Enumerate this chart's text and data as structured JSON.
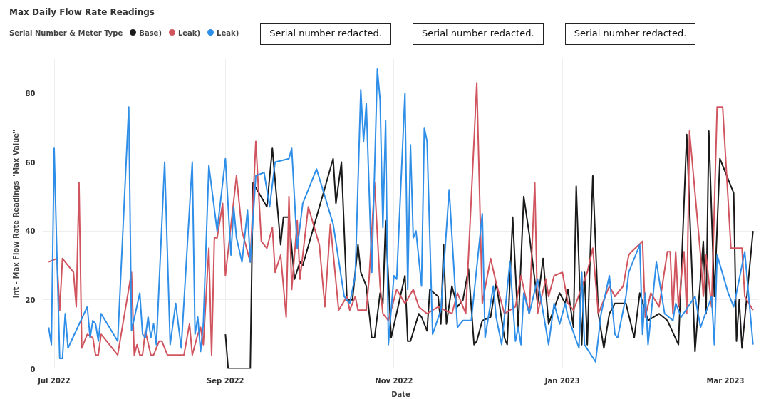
{
  "chart_data": {
    "type": "line",
    "title": "Max Daily Flow Rate Readings",
    "legend_title": "Serial Number & Meter Type",
    "xlabel": "Date",
    "ylabel": "Int - Max Flow Rate Readings \"Max Value\"",
    "xlim": [
      "2022-06-27",
      "2023-03-13"
    ],
    "xticks": [
      {
        "value": "2022-07-01",
        "label": "Jul 2022"
      },
      {
        "value": "2022-09-01",
        "label": "Sep 2022"
      },
      {
        "value": "2022-11-01",
        "label": "Nov 2022"
      },
      {
        "value": "2023-01-01",
        "label": "Jan 2023"
      },
      {
        "value": "2023-03-01",
        "label": "Mar 2023"
      }
    ],
    "ylim": [
      0,
      90
    ],
    "yticks": [
      0,
      20,
      40,
      60,
      80
    ],
    "grid": true,
    "legend": "top left",
    "line_style": "solid",
    "annotations": [
      "Serial number redacted.",
      "Serial number redacted.",
      "Serial number redacted."
    ],
    "series": [
      {
        "name": "Base)",
        "color": "#1a1a1a",
        "x": [
          "2022-09-01",
          "2022-09-02",
          "2022-09-10",
          "2022-09-11",
          "2022-09-16",
          "2022-09-18",
          "2022-09-21",
          "2022-09-22",
          "2022-09-24",
          "2022-09-26",
          "2022-09-28",
          "2022-09-29",
          "2022-10-10",
          "2022-10-11",
          "2022-10-13",
          "2022-10-15",
          "2022-10-17",
          "2022-10-19",
          "2022-10-20",
          "2022-10-22",
          "2022-10-24",
          "2022-10-25",
          "2022-10-27",
          "2022-10-28",
          "2022-10-29",
          "2022-10-31",
          "2022-11-05",
          "2022-11-06",
          "2022-11-07",
          "2022-11-10",
          "2022-11-11",
          "2022-11-13",
          "2022-11-14",
          "2022-11-17",
          "2022-11-18",
          "2022-11-19",
          "2022-11-20",
          "2022-11-22",
          "2022-11-24",
          "2022-11-26",
          "2022-11-28",
          "2022-11-30",
          "2022-12-01",
          "2022-12-03",
          "2022-12-06",
          "2022-12-08",
          "2022-12-11",
          "2022-12-12",
          "2022-12-14",
          "2022-12-16",
          "2022-12-18",
          "2022-12-20",
          "2022-12-23",
          "2022-12-25",
          "2022-12-27",
          "2022-12-31",
          "2023-01-02",
          "2023-01-03",
          "2023-01-05",
          "2023-01-06",
          "2023-01-08",
          "2023-01-09",
          "2023-01-10",
          "2023-01-12",
          "2023-01-14",
          "2023-01-16",
          "2023-01-18",
          "2023-01-20",
          "2023-01-24",
          "2023-01-27",
          "2023-01-29",
          "2023-02-01",
          "2023-02-05",
          "2023-02-08",
          "2023-02-12",
          "2023-02-15",
          "2023-02-18",
          "2023-02-21",
          "2023-02-22",
          "2023-02-23",
          "2023-02-25",
          "2023-02-27",
          "2023-03-04",
          "2023-03-05",
          "2023-03-06",
          "2023-03-07",
          "2023-03-11"
        ],
        "values": [
          10,
          0,
          0,
          54,
          47,
          64,
          36,
          44,
          44,
          26,
          31,
          30,
          61,
          48,
          60,
          20,
          20,
          36,
          28,
          24,
          9,
          9,
          22,
          19,
          43,
          9,
          27,
          8,
          8,
          16,
          15,
          11,
          23,
          21,
          13,
          36,
          13,
          24,
          18,
          20,
          29,
          7,
          8,
          14,
          15,
          25,
          9,
          7,
          44,
          12,
          50,
          39,
          19,
          32,
          13,
          22,
          19,
          23,
          12,
          53,
          7,
          28,
          7,
          56,
          16,
          6,
          16,
          19,
          19,
          9,
          22,
          14,
          16,
          14,
          7,
          68,
          5,
          37,
          16,
          69,
          21,
          61,
          51,
          8,
          20,
          6,
          40
        ]
      },
      {
        "name": "Leak)",
        "color": "#d0555f",
        "x": [
          "2022-06-29",
          "2022-07-02",
          "2022-07-03",
          "2022-07-04",
          "2022-07-08",
          "2022-07-09",
          "2022-07-10",
          "2022-07-11",
          "2022-07-13",
          "2022-07-15",
          "2022-07-16",
          "2022-07-17",
          "2022-07-18",
          "2022-07-24",
          "2022-07-29",
          "2022-07-30",
          "2022-07-31",
          "2022-08-01",
          "2022-08-02",
          "2022-08-03",
          "2022-08-05",
          "2022-08-06",
          "2022-08-08",
          "2022-08-09",
          "2022-08-11",
          "2022-08-17",
          "2022-08-19",
          "2022-08-20",
          "2022-08-22",
          "2022-08-23",
          "2022-08-24",
          "2022-08-26",
          "2022-08-27",
          "2022-08-28",
          "2022-08-29",
          "2022-08-31",
          "2022-09-01",
          "2022-09-05",
          "2022-09-07",
          "2022-09-10",
          "2022-09-12",
          "2022-09-14",
          "2022-09-16",
          "2022-09-18",
          "2022-09-19",
          "2022-09-21",
          "2022-09-23",
          "2022-09-24",
          "2022-09-25",
          "2022-09-27",
          "2022-09-28",
          "2022-10-01",
          "2022-10-05",
          "2022-10-07",
          "2022-10-09",
          "2022-10-12",
          "2022-10-15",
          "2022-10-16",
          "2022-10-18",
          "2022-10-19",
          "2022-10-22",
          "2022-10-23",
          "2022-10-25",
          "2022-10-27",
          "2022-10-28",
          "2022-10-30",
          "2022-11-02",
          "2022-11-05",
          "2022-11-08",
          "2022-11-10",
          "2022-11-13",
          "2022-11-17",
          "2022-11-22",
          "2022-11-24",
          "2022-11-27",
          "2022-12-01",
          "2022-12-03",
          "2022-12-06",
          "2022-12-08",
          "2022-12-11",
          "2022-12-15",
          "2022-12-17",
          "2022-12-20",
          "2022-12-22",
          "2022-12-23",
          "2022-12-26",
          "2022-12-27",
          "2022-12-29",
          "2023-01-01",
          "2023-01-03",
          "2023-01-05",
          "2023-01-10",
          "2023-01-12",
          "2023-01-14",
          "2023-01-18",
          "2023-01-20",
          "2023-01-23",
          "2023-01-25",
          "2023-01-26",
          "2023-01-30",
          "2023-01-31",
          "2023-02-02",
          "2023-02-05",
          "2023-02-08",
          "2023-02-09",
          "2023-02-10",
          "2023-02-11",
          "2023-02-12",
          "2023-02-14",
          "2023-02-15",
          "2023-02-16",
          "2023-02-20",
          "2023-02-21",
          "2023-02-22",
          "2023-02-24",
          "2023-02-26",
          "2023-02-28",
          "2023-03-03",
          "2023-03-07",
          "2023-03-08",
          "2023-03-11"
        ],
        "values": [
          31,
          32,
          17,
          32,
          28,
          18,
          54,
          6,
          10,
          9,
          4,
          4,
          10,
          4,
          28,
          4,
          7,
          4,
          4,
          11,
          4,
          4,
          8,
          8,
          4,
          4,
          13,
          4,
          10,
          12,
          7,
          35,
          4,
          38,
          38,
          48,
          27,
          56,
          40,
          31,
          66,
          37,
          35,
          41,
          28,
          33,
          15,
          50,
          23,
          43,
          26,
          47,
          36,
          18,
          42,
          17,
          21,
          17,
          21,
          17,
          17,
          26,
          54,
          24,
          16,
          14,
          23,
          19,
          23,
          18,
          16,
          18,
          16,
          22,
          16,
          83,
          19,
          32,
          25,
          16,
          18,
          27,
          16,
          54,
          16,
          26,
          21,
          27,
          28,
          19,
          17,
          28,
          35,
          16,
          24,
          21,
          24,
          33,
          34,
          37,
          15,
          22,
          18,
          34,
          34,
          16,
          34,
          18,
          34,
          16,
          69,
          33,
          21,
          33,
          18,
          76,
          76,
          35,
          35,
          21,
          17
        ]
      },
      {
        "name": "Leak)",
        "color": "#2f8fe8",
        "x": [
          "2022-06-29",
          "2022-06-30",
          "2022-07-01",
          "2022-07-02",
          "2022-07-03",
          "2022-07-04",
          "2022-07-05",
          "2022-07-06",
          "2022-07-13",
          "2022-07-14",
          "2022-07-15",
          "2022-07-16",
          "2022-07-17",
          "2022-07-18",
          "2022-07-24",
          "2022-07-28",
          "2022-07-29",
          "2022-08-01",
          "2022-08-02",
          "2022-08-03",
          "2022-08-04",
          "2022-08-05",
          "2022-08-06",
          "2022-08-07",
          "2022-08-10",
          "2022-08-12",
          "2022-08-14",
          "2022-08-16",
          "2022-08-20",
          "2022-08-21",
          "2022-08-22",
          "2022-08-23",
          "2022-08-24",
          "2022-08-26",
          "2022-08-29",
          "2022-09-01",
          "2022-09-03",
          "2022-09-04",
          "2022-09-05",
          "2022-09-07",
          "2022-09-09",
          "2022-09-10",
          "2022-09-12",
          "2022-09-15",
          "2022-09-17",
          "2022-09-19",
          "2022-09-24",
          "2022-09-25",
          "2022-09-27",
          "2022-09-29",
          "2022-10-04",
          "2022-10-10",
          "2022-10-14",
          "2022-10-16",
          "2022-10-18",
          "2022-10-20",
          "2022-10-21",
          "2022-10-22",
          "2022-10-24",
          "2022-10-26",
          "2022-10-27",
          "2022-10-28",
          "2022-10-29",
          "2022-10-30",
          "2022-11-01",
          "2022-11-02",
          "2022-11-05",
          "2022-11-06",
          "2022-11-07",
          "2022-11-08",
          "2022-11-09",
          "2022-11-11",
          "2022-11-12",
          "2022-11-13",
          "2022-11-15",
          "2022-11-18",
          "2022-11-21",
          "2022-11-24",
          "2022-11-26",
          "2022-11-29",
          "2022-12-03",
          "2022-12-04",
          "2022-12-07",
          "2022-12-08",
          "2022-12-10",
          "2022-12-13",
          "2022-12-15",
          "2022-12-16",
          "2022-12-17",
          "2022-12-18",
          "2022-12-20",
          "2022-12-23",
          "2022-12-27",
          "2022-12-29",
          "2022-12-31",
          "2023-01-02",
          "2023-01-03",
          "2023-01-07",
          "2023-01-08",
          "2023-01-09",
          "2023-01-13",
          "2023-01-15",
          "2023-01-18",
          "2023-01-20",
          "2023-01-21",
          "2023-01-24",
          "2023-01-25",
          "2023-01-29",
          "2023-01-30",
          "2023-01-31",
          "2023-02-01",
          "2023-02-04",
          "2023-02-07",
          "2023-02-10",
          "2023-02-11",
          "2023-02-13",
          "2023-02-18",
          "2023-02-20",
          "2023-02-24",
          "2023-02-25",
          "2023-02-26",
          "2023-03-02",
          "2023-03-04",
          "2023-03-08",
          "2023-03-11"
        ],
        "values": [
          12,
          7,
          64,
          33,
          3,
          3,
          16,
          6,
          18,
          9,
          14,
          13,
          8,
          16,
          8,
          76,
          11,
          22,
          10,
          9,
          15,
          9,
          13,
          7,
          60,
          7,
          19,
          6,
          60,
          10,
          15,
          5,
          13,
          59,
          40,
          61,
          33,
          47,
          38,
          31,
          46,
          31,
          56,
          57,
          47,
          60,
          61,
          64,
          35,
          48,
          58,
          42,
          21,
          19,
          27,
          81,
          66,
          77,
          28,
          87,
          78,
          41,
          72,
          7,
          27,
          26,
          80,
          23,
          65,
          38,
          40,
          24,
          70,
          66,
          10,
          17,
          52,
          12,
          14,
          14,
          45,
          9,
          24,
          15,
          7,
          31,
          8,
          12,
          7,
          22,
          16,
          26,
          7,
          19,
          13,
          19,
          15,
          6,
          28,
          7,
          2,
          16,
          27,
          10,
          9,
          21,
          28,
          36,
          10,
          22,
          7,
          31,
          16,
          14,
          19,
          15,
          21,
          12,
          21,
          7,
          33,
          22,
          18,
          34,
          7
        ]
      }
    ]
  }
}
